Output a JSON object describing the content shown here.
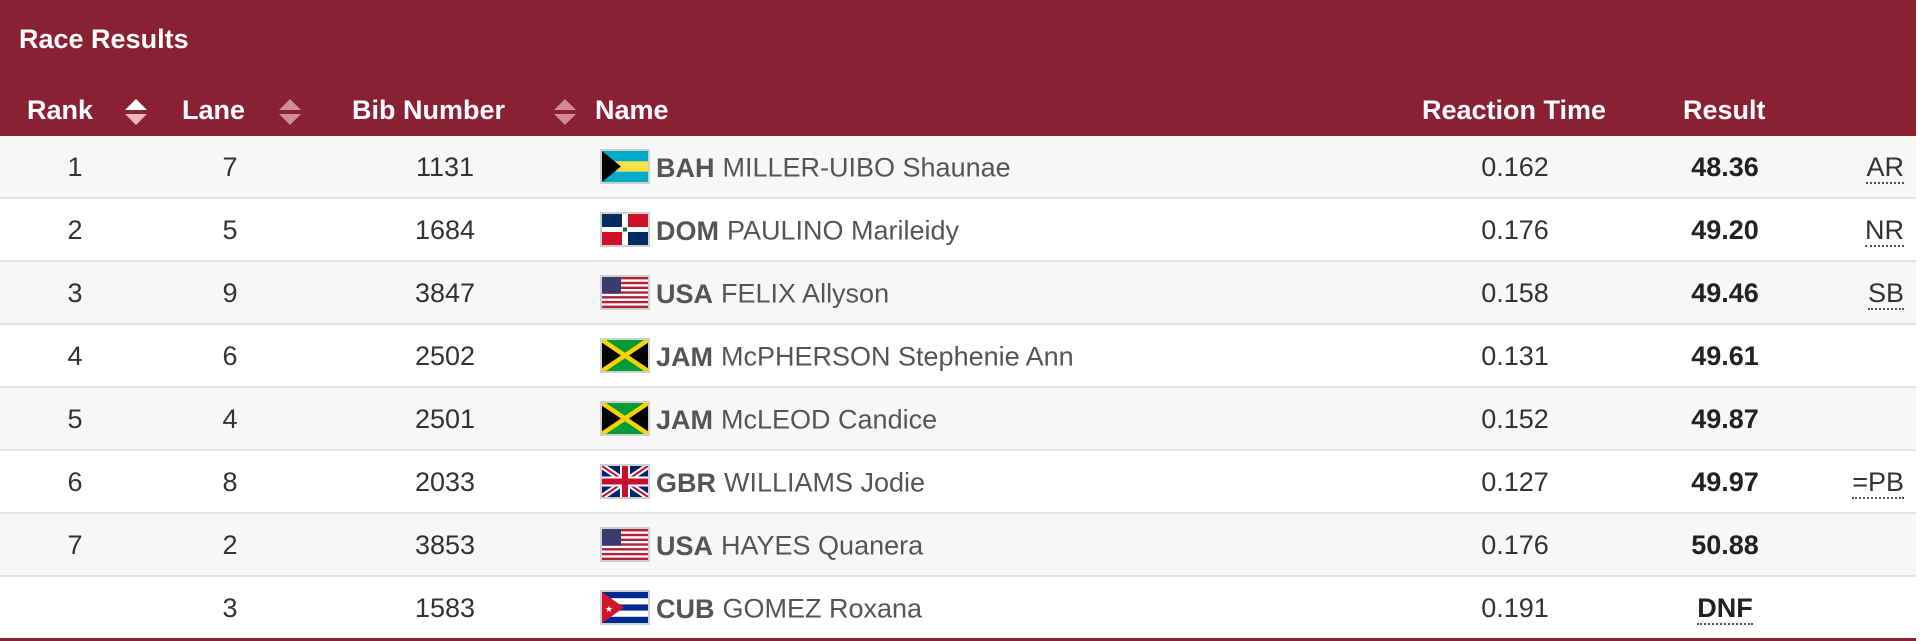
{
  "table": {
    "title": "Race Results",
    "columns": {
      "rank": "Rank",
      "lane": "Lane",
      "bib": "Bib Number",
      "name": "Name",
      "reaction": "Reaction Time",
      "result": "Result"
    },
    "rows": [
      {
        "rank": "1",
        "lane": "7",
        "bib": "1131",
        "flag": "bahamas-flag-icon",
        "noc": "BAH",
        "athlete": "MILLER-UIBO Shaunae",
        "reaction": "0.162",
        "result": "48.36",
        "record": "AR"
      },
      {
        "rank": "2",
        "lane": "5",
        "bib": "1684",
        "flag": "dominican-republic-flag-icon",
        "noc": "DOM",
        "athlete": "PAULINO Marileidy",
        "reaction": "0.176",
        "result": "49.20",
        "record": "NR"
      },
      {
        "rank": "3",
        "lane": "9",
        "bib": "3847",
        "flag": "usa-flag-icon",
        "noc": "USA",
        "athlete": "FELIX Allyson",
        "reaction": "0.158",
        "result": "49.46",
        "record": "SB"
      },
      {
        "rank": "4",
        "lane": "6",
        "bib": "2502",
        "flag": "jamaica-flag-icon",
        "noc": "JAM",
        "athlete": "McPHERSON Stephenie Ann",
        "reaction": "0.131",
        "result": "49.61",
        "record": ""
      },
      {
        "rank": "5",
        "lane": "4",
        "bib": "2501",
        "flag": "jamaica-flag-icon",
        "noc": "JAM",
        "athlete": "McLEOD Candice",
        "reaction": "0.152",
        "result": "49.87",
        "record": ""
      },
      {
        "rank": "6",
        "lane": "8",
        "bib": "2033",
        "flag": "great-britain-flag-icon",
        "noc": "GBR",
        "athlete": "WILLIAMS Jodie",
        "reaction": "0.127",
        "result": "49.97",
        "record": "=PB"
      },
      {
        "rank": "7",
        "lane": "2",
        "bib": "3853",
        "flag": "usa-flag-icon",
        "noc": "USA",
        "athlete": "HAYES Quanera",
        "reaction": "0.176",
        "result": "50.88",
        "record": ""
      },
      {
        "rank": "",
        "lane": "3",
        "bib": "1583",
        "flag": "cuba-flag-icon",
        "noc": "CUB",
        "athlete": "GOMEZ Roxana",
        "reaction": "0.191",
        "result": "DNF",
        "record": ""
      }
    ]
  },
  "colors": {
    "header_bg": "#8a2133",
    "row_alt_bg": "#f7f7f7"
  }
}
